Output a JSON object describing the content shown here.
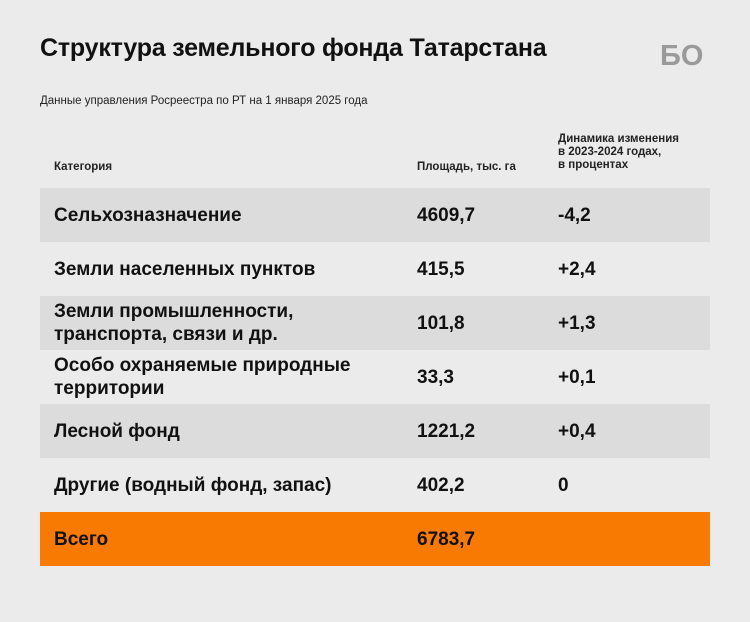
{
  "header": {
    "title": "Структура земельного фонда Татарстана",
    "subtitle": "Данные управления Росреестра по РТ на 1 января 2025 года",
    "logo_text": "БО"
  },
  "colors": {
    "background": "#ebebeb",
    "row_shade": "#dcdcdc",
    "accent_total": "#f97a03"
  },
  "chart_data": {
    "type": "table",
    "title": "Структура земельного фонда Татарстана",
    "subtitle": "Данные управления Росреестра по РТ на 1 января 2025 года",
    "columns": [
      "Категория",
      "Площадь, тыс. га",
      "Динамика изменения\nв 2023-2024 годах,\nв процентах"
    ],
    "rows": [
      {
        "category": "Сельхозназначение",
        "area": "4609,7",
        "change": "-4,2"
      },
      {
        "category": "Земли населенных пунктов",
        "area": "415,5",
        "change": "+2,4"
      },
      {
        "category": "Земли промышленности,\nтранспорта, связи и др.",
        "area": "101,8",
        "change": "+1,3"
      },
      {
        "category": "Особо охраняемые природные\nтерритории",
        "area": "33,3",
        "change": "+0,1"
      },
      {
        "category": "Лесной фонд",
        "area": "1221,2",
        "change": "+0,4"
      },
      {
        "category": "Другие (водный фонд, запас)",
        "area": "402,2",
        "change": "0"
      }
    ],
    "total": {
      "category": "Всего",
      "area": "6783,7",
      "change": ""
    }
  }
}
